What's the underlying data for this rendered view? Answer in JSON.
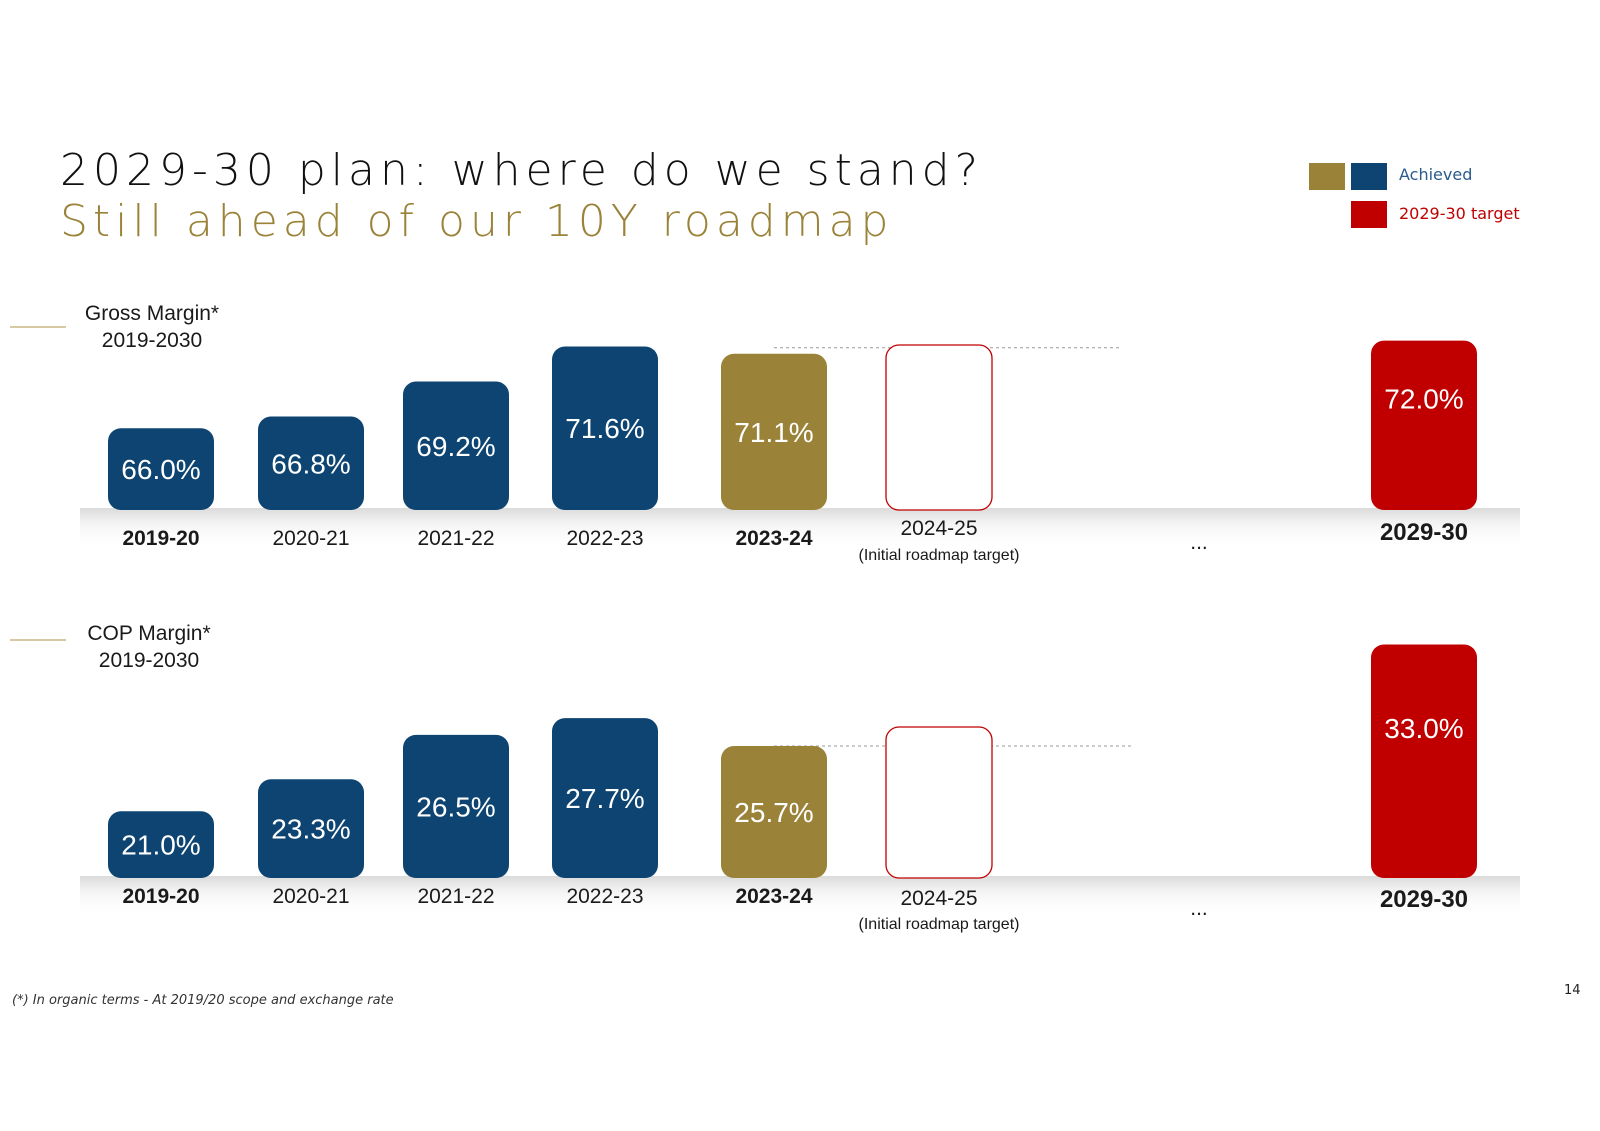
{
  "title": "2029-30 plan: where do we stand?",
  "subtitle": "Still ahead of our 10Y roadmap",
  "legend": {
    "achieved": "Achieved",
    "target": "2029-30 target"
  },
  "colors": {
    "achieved_blue": "#0d4471",
    "achieved_gold": "#9a8239",
    "target_red": "#c00000",
    "title_gold": "#9a8239"
  },
  "footnote": "(*) In organic terms - At 2019/20 scope and exchange rate",
  "page_number": "14",
  "chart_data": [
    {
      "type": "bar",
      "title": "Gross Margin*",
      "period": "2019-2030",
      "categories": [
        "2019-20",
        "2020-21",
        "2021-22",
        "2022-23",
        "2023-24",
        "2024-25",
        "...",
        "2029-30"
      ],
      "category_notes": [
        "",
        "",
        "",
        "",
        "",
        "(Initial roadmap target)",
        "",
        ""
      ],
      "category_bold": [
        true,
        false,
        false,
        false,
        true,
        false,
        true,
        true
      ],
      "values": [
        66.0,
        66.8,
        69.2,
        71.6,
        71.1,
        null,
        null,
        72.0
      ],
      "labels": [
        "66.0%",
        "66.8%",
        "69.2%",
        "71.6%",
        "71.1%",
        "",
        "",
        "72.0%"
      ],
      "kinds": [
        "achieved",
        "achieved",
        "achieved",
        "achieved",
        "achieved-latest",
        "initial-target",
        "gap",
        "target"
      ]
    },
    {
      "type": "bar",
      "title": "COP Margin*",
      "period": "2019-2030",
      "categories": [
        "2019-20",
        "2020-21",
        "2021-22",
        "2022-23",
        "2023-24",
        "2024-25",
        "...",
        "2029-30"
      ],
      "category_notes": [
        "",
        "",
        "",
        "",
        "",
        "(Initial roadmap target)",
        "",
        ""
      ],
      "category_bold": [
        true,
        false,
        false,
        false,
        true,
        false,
        true,
        true
      ],
      "values": [
        21.0,
        23.3,
        26.5,
        27.7,
        25.7,
        null,
        null,
        33.0
      ],
      "labels": [
        "21.0%",
        "23.3%",
        "26.5%",
        "27.7%",
        "25.7%",
        "",
        "",
        "33.0%"
      ],
      "kinds": [
        "achieved",
        "achieved",
        "achieved",
        "achieved",
        "achieved-latest",
        "initial-target",
        "gap",
        "target"
      ]
    }
  ]
}
